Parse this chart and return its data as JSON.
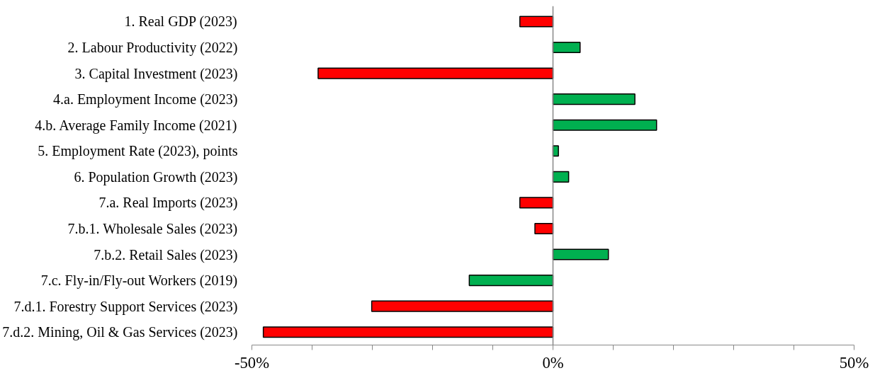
{
  "chart_data": {
    "type": "bar",
    "orientation": "horizontal",
    "categories": [
      "1. Real GDP (2023)",
      "2. Labour Productivity (2022)",
      "3. Capital Investment (2023)",
      "4.a. Employment Income (2023)",
      "4.b. Average Family Income (2021)",
      "5. Employment Rate (2023), points",
      "6. Population Growth (2023)",
      "7.a. Real Imports (2023)",
      "7.b.1. Wholesale Sales (2023)",
      "7.b.2. Retail Sales (2023)",
      "7.c. Fly-in/Fly-out Workers (2019)",
      "7.d.1. Forestry Support Services (2023)",
      "7.d.2. Mining, Oil & Gas Services (2023)"
    ],
    "values": [
      -5.5,
      4.5,
      -39.0,
      13.6,
      17.2,
      0.9,
      2.6,
      -5.5,
      -3.0,
      9.2,
      -13.9,
      -30.1,
      -48.1
    ],
    "colors": [
      "#ff0000",
      "#00b050",
      "#ff0000",
      "#00b050",
      "#00b050",
      "#00b050",
      "#00b050",
      "#ff0000",
      "#ff0000",
      "#00b050",
      "#00b050",
      "#ff0000",
      "#ff0000"
    ],
    "xlim": [
      -50,
      50
    ],
    "xticks": [
      {
        "value": -50,
        "label": "-50%"
      },
      {
        "value": -40,
        "label": null
      },
      {
        "value": -30,
        "label": null
      },
      {
        "value": -20,
        "label": null
      },
      {
        "value": -10,
        "label": null
      },
      {
        "value": 0,
        "label": "0%"
      },
      {
        "value": 10,
        "label": null
      },
      {
        "value": 20,
        "label": null
      },
      {
        "value": 30,
        "label": null
      },
      {
        "value": 40,
        "label": null
      },
      {
        "value": 50,
        "label": "50%"
      }
    ]
  }
}
